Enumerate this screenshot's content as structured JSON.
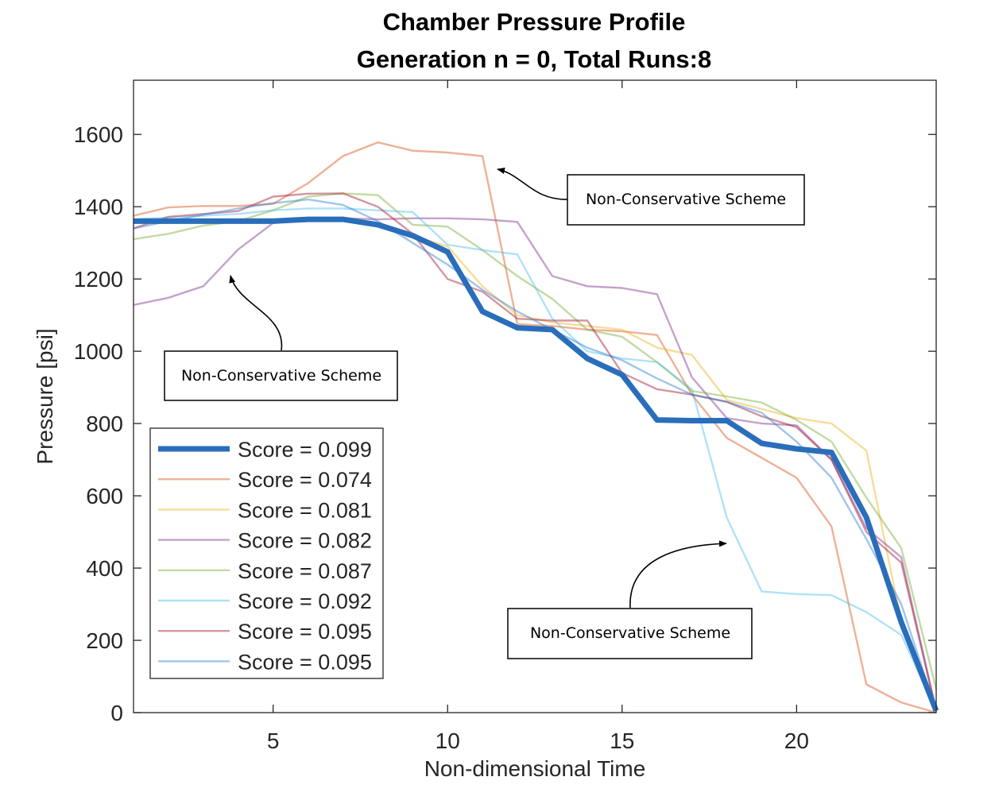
{
  "chart_data": {
    "type": "line",
    "title": "Chamber Pressure Profile",
    "subtitle": "Generation n = 0, Total Runs:8",
    "xlabel": "Non-dimensional Time",
    "ylabel": "Pressure [psi]",
    "xlim": [
      1,
      24
    ],
    "ylim": [
      0,
      1750
    ],
    "xticks": [
      5,
      10,
      15,
      20
    ],
    "yticks": [
      0,
      200,
      400,
      600,
      800,
      1000,
      1200,
      1400,
      1600
    ],
    "grid": false,
    "legend_position": "lower-left",
    "x": [
      1,
      2,
      3,
      4,
      5,
      6,
      7,
      8,
      9,
      10,
      11,
      12,
      13,
      14,
      15,
      16,
      17,
      18,
      19,
      20,
      21,
      22,
      23,
      24
    ],
    "series": [
      {
        "name": "Score = 0.099",
        "color": "#2a6ebb",
        "emphasis": true,
        "values": [
          1360,
          1360,
          1360,
          1360,
          1360,
          1365,
          1365,
          1350,
          1320,
          1275,
          1110,
          1065,
          1060,
          980,
          935,
          810,
          808,
          808,
          745,
          730,
          720,
          540,
          250,
          5
        ]
      },
      {
        "name": "Score = 0.074",
        "color": "#d95319",
        "values": [
          1375,
          1398,
          1402,
          1402,
          1408,
          1465,
          1540,
          1578,
          1555,
          1550,
          1540,
          1075,
          1070,
          1060,
          1055,
          1045,
          880,
          760,
          705,
          650,
          515,
          78,
          28,
          0
        ]
      },
      {
        "name": "Score = 0.081",
        "color": "#edb120",
        "values": [
          1360,
          1365,
          1365,
          1365,
          1365,
          1365,
          1370,
          1355,
          1320,
          1290,
          1180,
          1100,
          1080,
          1070,
          1060,
          1010,
          990,
          865,
          840,
          815,
          800,
          725,
          250,
          5
        ]
      },
      {
        "name": "Score = 0.082",
        "color": "#7e2f8e",
        "values": [
          1128,
          1148,
          1180,
          1282,
          1355,
          1365,
          1368,
          1365,
          1368,
          1368,
          1365,
          1358,
          1208,
          1180,
          1175,
          1158,
          928,
          815,
          800,
          795,
          700,
          510,
          430,
          5
        ]
      },
      {
        "name": "Score = 0.087",
        "color": "#77ac30",
        "values": [
          1310,
          1325,
          1348,
          1360,
          1390,
          1428,
          1437,
          1432,
          1350,
          1345,
          1280,
          1208,
          1145,
          1060,
          1040,
          970,
          890,
          875,
          858,
          810,
          750,
          595,
          455,
          65
        ]
      },
      {
        "name": "Score = 0.092",
        "color": "#4dbeee",
        "values": [
          1365,
          1370,
          1375,
          1380,
          1390,
          1395,
          1395,
          1390,
          1385,
          1295,
          1280,
          1268,
          1090,
          1000,
          980,
          970,
          895,
          540,
          335,
          328,
          325,
          278,
          215,
          5
        ]
      },
      {
        "name": "Score = 0.095",
        "color": "#a2142f",
        "values": [
          1340,
          1372,
          1380,
          1388,
          1428,
          1436,
          1437,
          1400,
          1325,
          1200,
          1165,
          1090,
          1085,
          1085,
          940,
          895,
          880,
          860,
          820,
          790,
          700,
          500,
          415,
          5
        ]
      },
      {
        "name": "Score = 0.095",
        "color": "#2a7fd4",
        "values": [
          1340,
          1360,
          1378,
          1395,
          1410,
          1420,
          1405,
          1360,
          1300,
          1240,
          1170,
          1110,
          1060,
          1010,
          975,
          925,
          880,
          860,
          830,
          750,
          650,
          480,
          300,
          5
        ]
      }
    ],
    "annotations": [
      {
        "text": "Non-Conservative Scheme"
      },
      {
        "text": "Non-Conservative Scheme"
      },
      {
        "text": "Non-Conservative Scheme"
      }
    ]
  }
}
